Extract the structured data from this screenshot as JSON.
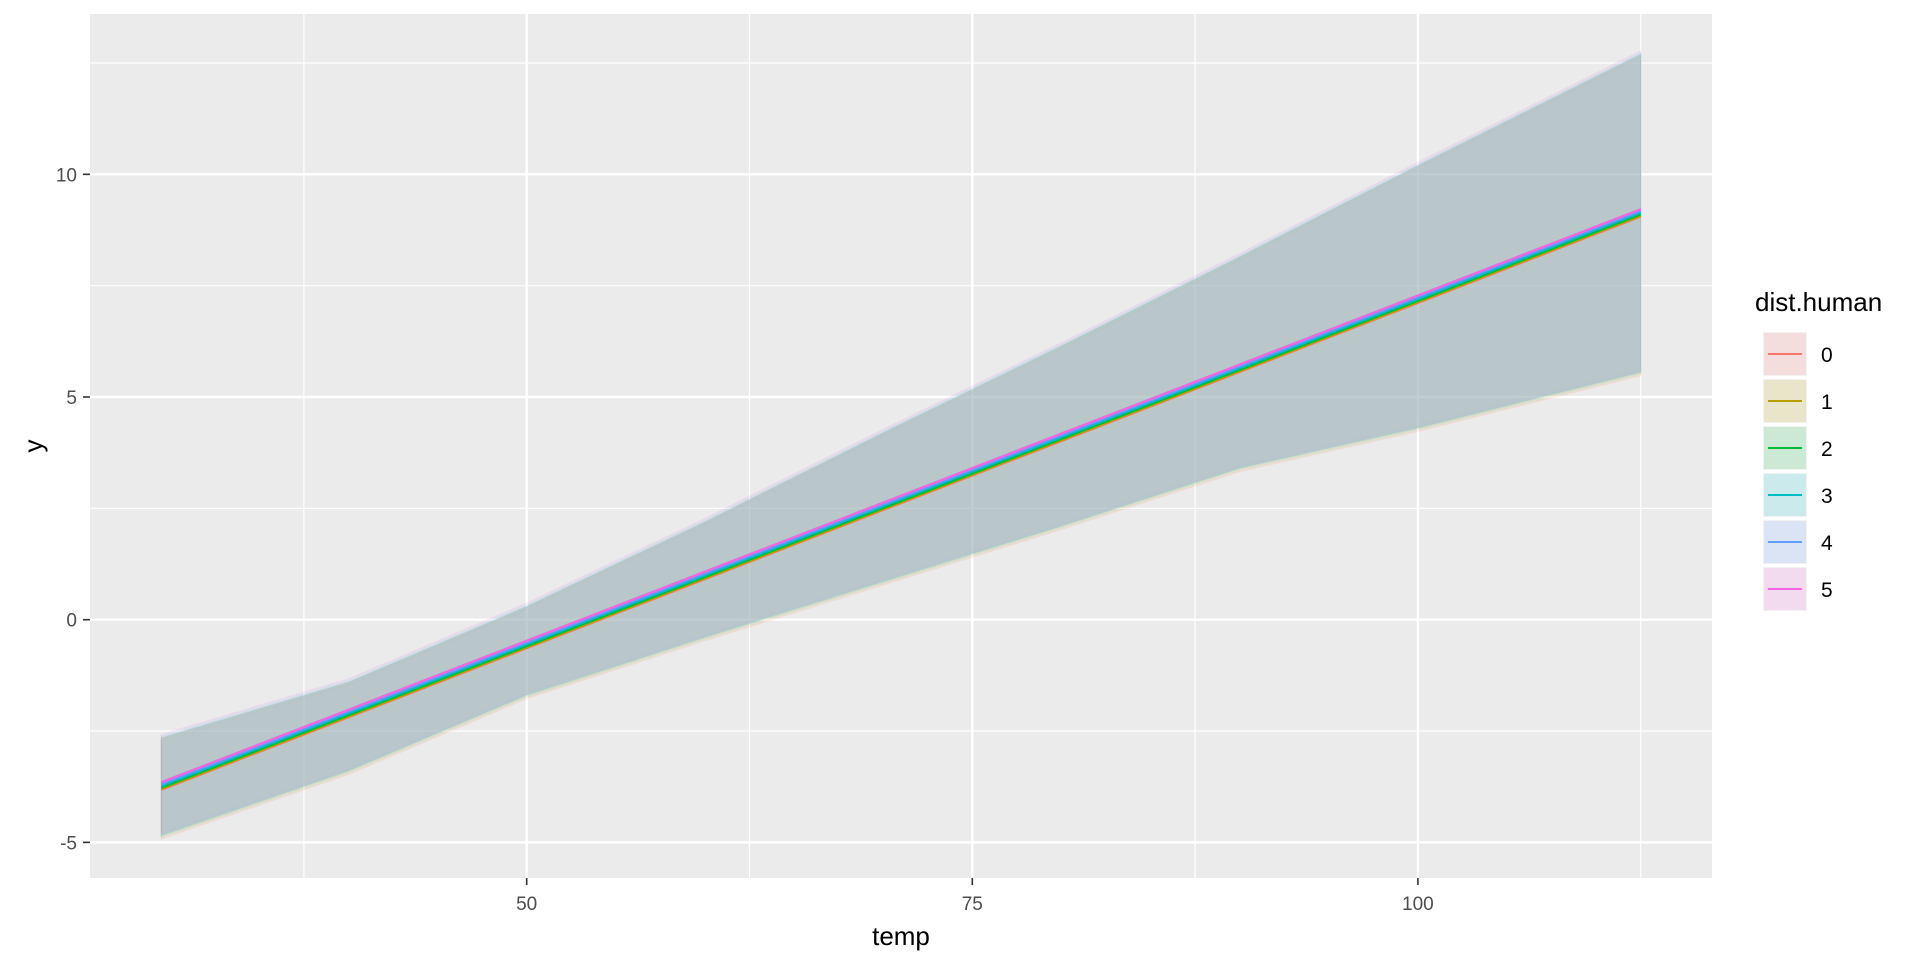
{
  "chart_data": {
    "type": "line",
    "title": "",
    "xlabel": "temp",
    "ylabel": "y",
    "xlim": [
      25.5,
      116.5
    ],
    "ylim": [
      -5.8,
      13.6
    ],
    "x_ticks": [
      50,
      75,
      100
    ],
    "y_ticks": [
      -5,
      0,
      5,
      10
    ],
    "x_minor_ticks": [
      37.5,
      62.5,
      87.5,
      112.5
    ],
    "y_minor_ticks": [
      -2.5,
      2.5,
      7.5,
      12.5
    ],
    "grid": true,
    "legend": {
      "title": "dist.human",
      "position": "right"
    },
    "band": {
      "x": [
        29.5,
        40,
        50,
        60,
        70,
        80,
        90,
        100,
        112.5
      ],
      "upper": [
        -2.65,
        -1.4,
        0.3,
        2.2,
        4.2,
        6.15,
        8.15,
        10.2,
        12.7
      ],
      "lower": [
        -4.85,
        -3.4,
        -1.7,
        -0.4,
        0.85,
        2.1,
        3.4,
        4.3,
        5.55
      ]
    },
    "series": [
      {
        "name": "0",
        "color": "#F8766D",
        "x": [
          29.5,
          112.5
        ],
        "y": [
          -3.82,
          9.05
        ]
      },
      {
        "name": "1",
        "color": "#B79F00",
        "x": [
          29.5,
          112.5
        ],
        "y": [
          -3.8,
          9.07
        ]
      },
      {
        "name": "2",
        "color": "#00BA38",
        "x": [
          29.5,
          112.5
        ],
        "y": [
          -3.77,
          9.1
        ]
      },
      {
        "name": "3",
        "color": "#00BFC4",
        "x": [
          29.5,
          112.5
        ],
        "y": [
          -3.73,
          9.14
        ]
      },
      {
        "name": "4",
        "color": "#619CFF",
        "x": [
          29.5,
          112.5
        ],
        "y": [
          -3.69,
          9.18
        ]
      },
      {
        "name": "5",
        "color": "#F564E3",
        "x": [
          29.5,
          112.5
        ],
        "y": [
          -3.65,
          9.22
        ]
      }
    ]
  }
}
